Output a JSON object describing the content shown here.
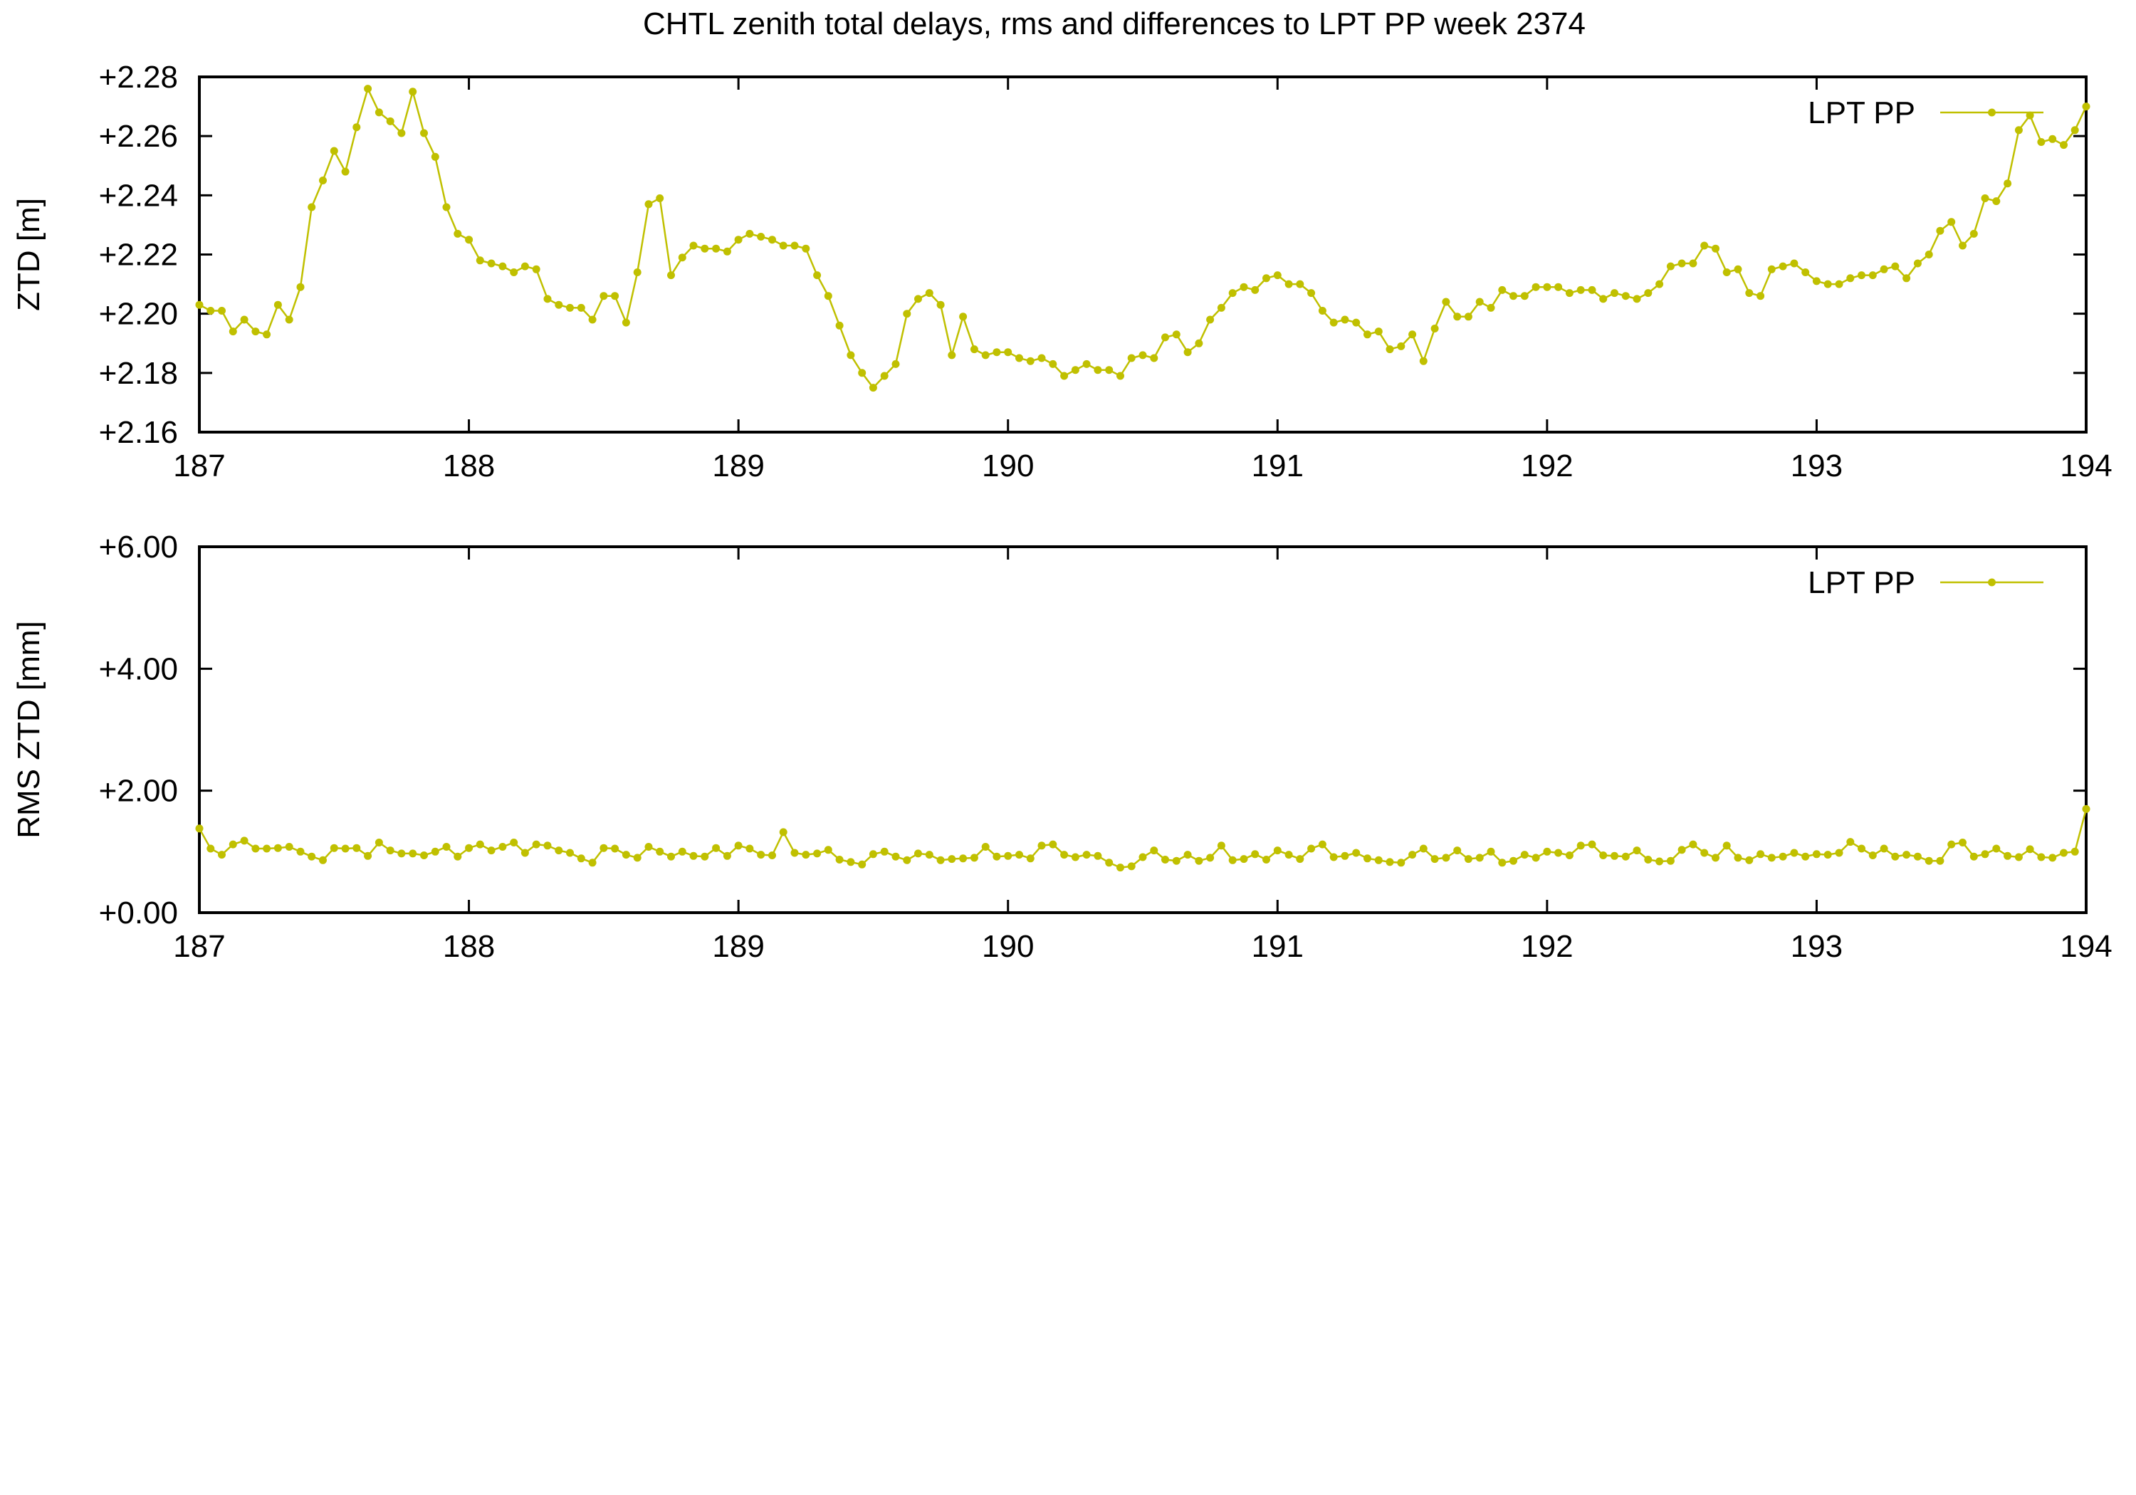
{
  "chart_data": [
    {
      "type": "line",
      "title": "CHTL zenith total delays, rms and differences to LPT PP week 2374",
      "xlabel": "",
      "ylabel": "ZTD [m]",
      "xlim": [
        187,
        194
      ],
      "ylim": [
        2.16,
        2.28
      ],
      "x_ticks": [
        187,
        188,
        189,
        190,
        191,
        192,
        193,
        194
      ],
      "x_tick_labels": [
        "187",
        "188",
        "189",
        "190",
        "191",
        "192",
        "193",
        "194"
      ],
      "y_ticks": [
        2.16,
        2.18,
        2.2,
        2.22,
        2.24,
        2.26,
        2.28
      ],
      "y_tick_labels": [
        "+2.16",
        "+2.18",
        "+2.20",
        "+2.22",
        "+2.24",
        "+2.26",
        "+2.28"
      ],
      "legend_position": "top-right",
      "series": [
        {
          "name": "LPT PP",
          "color": "#c0c000",
          "x_start": 187,
          "x_step": 0.04166667,
          "values": [
            2.203,
            2.201,
            2.201,
            2.194,
            2.198,
            2.194,
            2.193,
            2.203,
            2.198,
            2.209,
            2.236,
            2.245,
            2.255,
            2.248,
            2.263,
            2.276,
            2.268,
            2.265,
            2.261,
            2.275,
            2.261,
            2.253,
            2.236,
            2.227,
            2.225,
            2.218,
            2.217,
            2.216,
            2.214,
            2.216,
            2.215,
            2.205,
            2.203,
            2.202,
            2.202,
            2.198,
            2.206,
            2.206,
            2.197,
            2.214,
            2.237,
            2.239,
            2.213,
            2.219,
            2.223,
            2.222,
            2.222,
            2.221,
            2.225,
            2.227,
            2.226,
            2.225,
            2.223,
            2.223,
            2.222,
            2.213,
            2.206,
            2.196,
            2.186,
            2.18,
            2.175,
            2.179,
            2.183,
            2.2,
            2.205,
            2.207,
            2.203,
            2.186,
            2.199,
            2.188,
            2.186,
            2.187,
            2.187,
            2.185,
            2.184,
            2.185,
            2.183,
            2.179,
            2.181,
            2.183,
            2.181,
            2.181,
            2.179,
            2.185,
            2.186,
            2.185,
            2.192,
            2.193,
            2.187,
            2.19,
            2.198,
            2.202,
            2.207,
            2.209,
            2.208,
            2.212,
            2.213,
            2.21,
            2.21,
            2.207,
            2.201,
            2.197,
            2.198,
            2.197,
            2.193,
            2.194,
            2.188,
            2.189,
            2.193,
            2.184,
            2.195,
            2.204,
            2.199,
            2.199,
            2.204,
            2.202,
            2.208,
            2.206,
            2.206,
            2.209,
            2.209,
            2.209,
            2.207,
            2.208,
            2.208,
            2.205,
            2.207,
            2.206,
            2.205,
            2.207,
            2.21,
            2.216,
            2.217,
            2.217,
            2.223,
            2.222,
            2.214,
            2.215,
            2.207,
            2.206,
            2.215,
            2.216,
            2.217,
            2.214,
            2.211,
            2.21,
            2.21,
            2.212,
            2.213,
            2.213,
            2.215,
            2.216,
            2.212,
            2.217,
            2.22,
            2.228,
            2.231,
            2.223,
            2.227,
            2.239,
            2.238,
            2.244,
            2.262,
            2.267,
            2.258,
            2.259,
            2.257,
            2.262,
            2.27
          ]
        }
      ]
    },
    {
      "type": "line",
      "title": "",
      "xlabel": "",
      "ylabel": "RMS ZTD [mm]",
      "xlim": [
        187,
        194
      ],
      "ylim": [
        0,
        6
      ],
      "x_ticks": [
        187,
        188,
        189,
        190,
        191,
        192,
        193,
        194
      ],
      "x_tick_labels": [
        "187",
        "188",
        "189",
        "190",
        "191",
        "192",
        "193",
        "194"
      ],
      "y_ticks": [
        0,
        2,
        4,
        6
      ],
      "y_tick_labels": [
        "+0.00",
        "+2.00",
        "+4.00",
        "+6.00"
      ],
      "legend_position": "top-right",
      "series": [
        {
          "name": "LPT PP",
          "color": "#c0c000",
          "x_start": 187,
          "x_step": 0.04166667,
          "values": [
            1.38,
            1.05,
            0.95,
            1.12,
            1.18,
            1.05,
            1.05,
            1.06,
            1.08,
            1.0,
            0.92,
            0.86,
            1.06,
            1.05,
            1.06,
            0.93,
            1.15,
            1.02,
            0.97,
            0.97,
            0.94,
            1.0,
            1.08,
            0.92,
            1.06,
            1.12,
            1.02,
            1.08,
            1.15,
            0.98,
            1.12,
            1.1,
            1.02,
            0.98,
            0.89,
            0.82,
            1.06,
            1.05,
            0.95,
            0.9,
            1.08,
            1.0,
            0.92,
            1.0,
            0.93,
            0.92,
            1.06,
            0.93,
            1.1,
            1.05,
            0.95,
            0.94,
            1.32,
            0.98,
            0.95,
            0.97,
            1.03,
            0.87,
            0.83,
            0.79,
            0.96,
            1.0,
            0.92,
            0.86,
            0.97,
            0.95,
            0.86,
            0.88,
            0.89,
            0.9,
            1.08,
            0.92,
            0.93,
            0.95,
            0.89,
            1.1,
            1.12,
            0.95,
            0.91,
            0.95,
            0.93,
            0.82,
            0.74,
            0.76,
            0.91,
            1.02,
            0.87,
            0.85,
            0.95,
            0.85,
            0.9,
            1.1,
            0.86,
            0.88,
            0.96,
            0.87,
            1.02,
            0.95,
            0.88,
            1.05,
            1.12,
            0.91,
            0.93,
            0.98,
            0.89,
            0.86,
            0.83,
            0.82,
            0.95,
            1.05,
            0.88,
            0.9,
            1.02,
            0.88,
            0.9,
            1.0,
            0.82,
            0.85,
            0.95,
            0.9,
            1.0,
            0.98,
            0.94,
            1.1,
            1.12,
            0.94,
            0.93,
            0.92,
            1.02,
            0.87,
            0.84,
            0.85,
            1.03,
            1.12,
            0.98,
            0.9,
            1.1,
            0.9,
            0.86,
            0.96,
            0.9,
            0.92,
            0.98,
            0.92,
            0.96,
            0.95,
            0.98,
            1.16,
            1.05,
            0.94,
            1.05,
            0.92,
            0.95,
            0.92,
            0.85,
            0.85,
            1.12,
            1.15,
            0.92,
            0.96,
            1.05,
            0.93,
            0.91,
            1.04,
            0.91,
            0.9,
            0.98,
            1.0,
            1.7
          ]
        }
      ]
    }
  ]
}
